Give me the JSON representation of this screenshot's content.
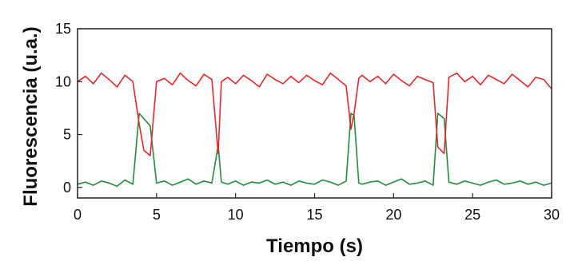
{
  "chart_data": {
    "type": "line",
    "xlabel": "Tiempo (s)",
    "ylabel": "Fluorescencia (u.a.)",
    "xlim": [
      0,
      30
    ],
    "ylim": [
      -1,
      15
    ],
    "x_ticks": [
      0,
      5,
      10,
      15,
      20,
      25,
      30
    ],
    "y_ticks": [
      0,
      5,
      10,
      15
    ],
    "grid": false,
    "legend": "none",
    "series": [
      {
        "color": "#e8262a",
        "x": [
          0,
          0.5,
          1,
          1.5,
          2,
          2.5,
          3,
          3.5,
          3.9,
          4.2,
          4.6,
          5,
          5.5,
          6,
          6.5,
          7,
          7.5,
          8,
          8.5,
          8.9,
          9.1,
          9.5,
          10,
          10.5,
          11,
          11.5,
          12,
          12.5,
          13,
          13.5,
          14,
          14.5,
          15,
          15.5,
          16,
          16.5,
          17,
          17.3,
          17.5,
          17.8,
          18,
          18.5,
          19,
          19.5,
          20,
          20.5,
          21,
          21.5,
          22,
          22.5,
          22.8,
          23.2,
          23.5,
          24,
          24.5,
          25,
          25.5,
          26,
          26.5,
          27,
          27.5,
          28,
          28.5,
          29,
          29.5,
          30
        ],
        "y": [
          10,
          10.5,
          9.8,
          10.8,
          10.2,
          9.5,
          10.6,
          10,
          6,
          3.5,
          3,
          10,
          10.3,
          9.7,
          10.8,
          10.1,
          9.6,
          10.7,
          10.2,
          3.2,
          10,
          10.4,
          9.8,
          10.6,
          10.1,
          9.5,
          10.7,
          10.2,
          9.8,
          10.5,
          9.9,
          10.6,
          10.1,
          9.7,
          10.8,
          10.2,
          9.6,
          5.5,
          7,
          10.3,
          10.6,
          10,
          10.5,
          9.8,
          10.7,
          10.1,
          9.6,
          10.5,
          10.2,
          9.9,
          3.8,
          3.2,
          10.4,
          10.8,
          10,
          10.5,
          9.7,
          10.6,
          10.2,
          9.8,
          10.7,
          10.1,
          9.5,
          10.4,
          10.2,
          9.3
        ]
      },
      {
        "color": "#1f8f3a",
        "x": [
          0,
          0.5,
          1,
          1.5,
          2,
          2.5,
          3,
          3.5,
          3.9,
          4.2,
          4.6,
          5,
          5.5,
          6,
          6.5,
          7,
          7.5,
          8,
          8.5,
          8.9,
          9.1,
          9.5,
          10,
          10.5,
          11,
          11.5,
          12,
          12.5,
          13,
          13.5,
          14,
          14.5,
          15,
          15.5,
          16,
          16.5,
          17,
          17.3,
          17.5,
          17.8,
          18,
          18.5,
          19,
          19.5,
          20,
          20.5,
          21,
          21.5,
          22,
          22.5,
          22.8,
          23.2,
          23.5,
          24,
          24.5,
          25,
          25.5,
          26,
          26.5,
          27,
          27.5,
          28,
          28.5,
          29,
          29.5,
          30
        ],
        "y": [
          0.3,
          0.5,
          0.2,
          0.6,
          0.4,
          0.1,
          0.7,
          0.3,
          7,
          6.5,
          5.8,
          0.4,
          0.6,
          0.2,
          0.5,
          0.8,
          0.3,
          0.6,
          0.4,
          4,
          0.5,
          0.3,
          0.6,
          0.2,
          0.5,
          0.4,
          0.7,
          0.3,
          0.5,
          0.2,
          0.6,
          0.4,
          0.3,
          0.7,
          0.5,
          0.2,
          0.6,
          7,
          6.8,
          0.4,
          0.3,
          0.5,
          0.6,
          0.2,
          0.5,
          0.8,
          0.3,
          0.4,
          0.6,
          0.2,
          7,
          6.5,
          0.5,
          0.3,
          0.6,
          0.4,
          0.2,
          0.5,
          0.7,
          0.3,
          0.4,
          0.6,
          0.3,
          0.5,
          0.2,
          0.4
        ]
      }
    ]
  }
}
